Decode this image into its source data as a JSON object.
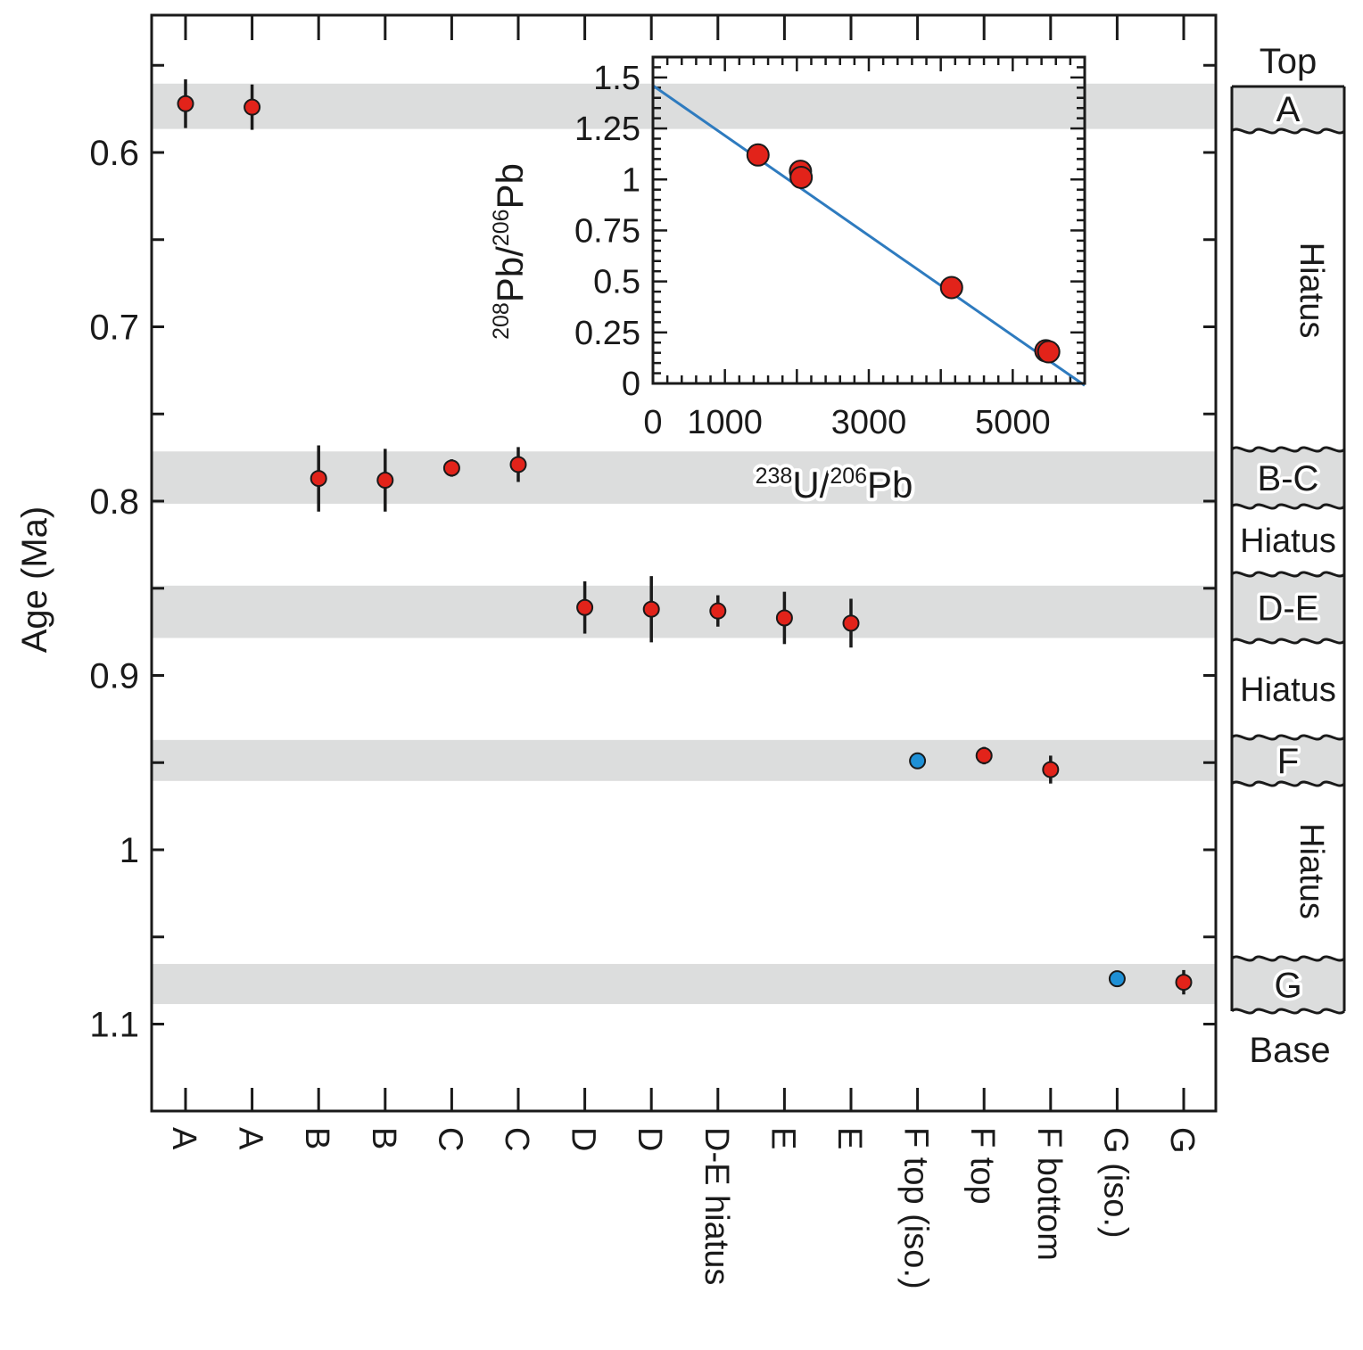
{
  "chart_data": [
    {
      "type": "scatter",
      "ylabel": "Age (Ma)",
      "y_axis_inverted": true,
      "ylim": [
        0.53,
        1.15
      ],
      "y_ticks": [
        "0.6",
        "0.7",
        "0.8",
        "0.9",
        "1",
        "1.1"
      ],
      "categories": [
        "A",
        "A",
        "B",
        "B",
        "C",
        "C",
        "D",
        "D",
        "D-E hiatus",
        "E",
        "E",
        "F top (iso.)",
        "F top",
        "F bottom",
        "G (iso.)",
        "G"
      ],
      "series": [
        {
          "marker_color": "#e2231a",
          "points": [
            {
              "category_index": 0,
              "age": 0.572,
              "error": 0.014
            },
            {
              "category_index": 1,
              "age": 0.574,
              "error": 0.013
            },
            {
              "category_index": 2,
              "age": 0.787,
              "error": 0.019
            },
            {
              "category_index": 3,
              "age": 0.788,
              "error": 0.018
            },
            {
              "category_index": 4,
              "age": 0.781,
              "error": 0.005
            },
            {
              "category_index": 5,
              "age": 0.779,
              "error": 0.01
            },
            {
              "category_index": 6,
              "age": 0.861,
              "error": 0.015
            },
            {
              "category_index": 7,
              "age": 0.862,
              "error": 0.019
            },
            {
              "category_index": 8,
              "age": 0.863,
              "error": 0.009
            },
            {
              "category_index": 9,
              "age": 0.867,
              "error": 0.015
            },
            {
              "category_index": 10,
              "age": 0.87,
              "error": 0.014
            },
            {
              "category_index": 12,
              "age": 0.946,
              "error": 0.005
            },
            {
              "category_index": 13,
              "age": 0.954,
              "error": 0.008
            },
            {
              "category_index": 15,
              "age": 1.076,
              "error": 0.007
            }
          ]
        },
        {
          "marker_color": "#1e90d6",
          "points": [
            {
              "category_index": 11,
              "age": 0.949,
              "error": 0.0
            },
            {
              "category_index": 14,
              "age": 1.074,
              "error": 0.004
            }
          ]
        }
      ],
      "shaded_bands": [
        {
          "label": "A",
          "y_range": [
            0.5605,
            0.5865
          ]
        },
        {
          "label": "B-C",
          "y_range": [
            0.7715,
            0.8015
          ]
        },
        {
          "label": "D-E",
          "y_range": [
            0.8485,
            0.8785
          ]
        },
        {
          "label": "F",
          "y_range": [
            0.937,
            0.9605
          ]
        },
        {
          "label": "G",
          "y_range": [
            1.0655,
            1.0885
          ]
        }
      ],
      "band_color": "#dcdddd"
    },
    {
      "type": "scatter",
      "role": "inset",
      "xlabel": {
        "sup": "238",
        "base": "U/",
        "sup2": "206",
        "base2": "Pb"
      },
      "ylabel": {
        "sup": "208",
        "base": "Pb/",
        "sup2": "206",
        "base2": "Pb"
      },
      "xlim": [
        0,
        6000
      ],
      "ylim": [
        0,
        1.6
      ],
      "x_ticks": [
        "0",
        "1000",
        "3000",
        "5000"
      ],
      "y_ticks": [
        "0",
        "0.25",
        "0.5",
        "0.75",
        "1",
        "1.25",
        "1.5"
      ],
      "points": [
        {
          "x": 1460,
          "y": 1.12
        },
        {
          "x": 2050,
          "y": 1.04
        },
        {
          "x": 2060,
          "y": 1.01
        },
        {
          "x": 4150,
          "y": 0.47
        },
        {
          "x": 5460,
          "y": 0.16
        },
        {
          "x": 5500,
          "y": 0.155
        }
      ],
      "regression_line": {
        "x": [
          0,
          6000
        ],
        "y": [
          1.46,
          -0.01
        ],
        "color": "#2e7bbf"
      },
      "marker_color": "#e2231a"
    }
  ],
  "stratigraphy": {
    "top_label": "Top",
    "base_label": "Base",
    "units": [
      {
        "label": "A",
        "kind": "layer"
      },
      {
        "label": "Hiatus",
        "kind": "hiatus"
      },
      {
        "label": "B-C",
        "kind": "layer"
      },
      {
        "label": "Hiatus",
        "kind": "hiatus"
      },
      {
        "label": "D-E",
        "kind": "layer"
      },
      {
        "label": "Hiatus",
        "kind": "hiatus"
      },
      {
        "label": "F",
        "kind": "layer"
      },
      {
        "label": "Hiatus",
        "kind": "hiatus"
      },
      {
        "label": "G",
        "kind": "layer"
      }
    ]
  }
}
